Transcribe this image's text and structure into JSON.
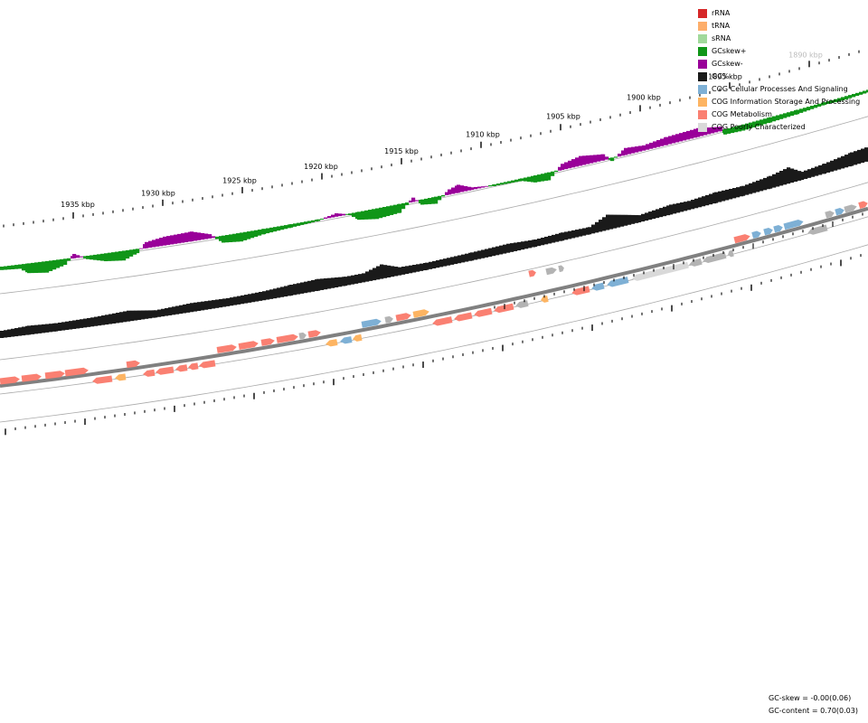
{
  "legend": {
    "items": [
      {
        "label": "rRNA",
        "color": "#d62728"
      },
      {
        "label": "tRNA",
        "color": "#fdae6b"
      },
      {
        "label": "sRNA",
        "color": "#a1d99b"
      },
      {
        "label": "GCskew+",
        "color": "#109618"
      },
      {
        "label": "GCskew-",
        "color": "#990099"
      },
      {
        "label": "GC%",
        "color": "#1a1a1a"
      },
      {
        "label": "COG Cellular Processes And Signaling",
        "color": "#7eb0d5"
      },
      {
        "label": "COG Information Storage And Processing",
        "color": "#fdb462"
      },
      {
        "label": "COG Metabolism",
        "color": "#fa8072"
      },
      {
        "label": "COG Poorly Characterized",
        "color": "#d9d9d9"
      }
    ]
  },
  "scale": {
    "tick_labels": [
      "1935 kbp",
      "1930 kbp",
      "1925 kbp",
      "1920 kbp",
      "1915 kbp",
      "1910 kbp",
      "1905 kbp",
      "1900 kbp",
      "1895 kbp",
      "1890 kbp"
    ]
  },
  "stats": {
    "gc_skew": "GC-skew = -0.00(0.06)",
    "gc_content": "GC-content = 0.70(0.03)"
  },
  "colors": {
    "backbone": "#808080",
    "guide": "#aaaaaa",
    "hypothetical": "#b3b3b3"
  }
}
